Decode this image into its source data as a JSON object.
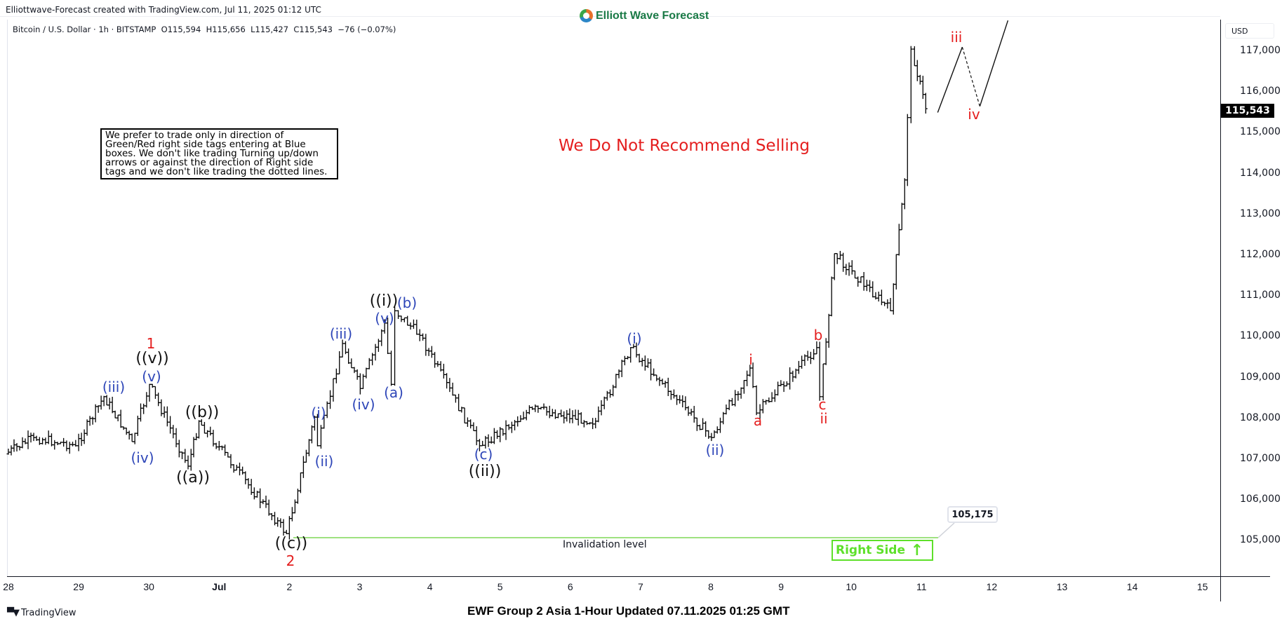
{
  "header": {
    "credit": "Elliottwave-Forecast created with TradingView.com, Jul 11, 2025 01:12 UTC",
    "brand": "Elliott Wave Forecast",
    "symbol_legend": "Bitcoin / U.S. Dollar · 1h · BITSTAMP  O115,594  H115,656  L115,427  C115,543  −76 (−0.07%)"
  },
  "note_box": "We prefer to trade only in direction of Green/Red right side tags entering at Blue boxes. We don't like trading Turning up/down arrows or against the direction of Right side tags and we don't like trading the dotted lines.",
  "headline": "We Do Not Recommend Selling",
  "price_axis": {
    "currency": "USD",
    "last_price": "115,543",
    "ticks": [
      "117,000",
      "116,000",
      "115,000",
      "114,000",
      "113,000",
      "112,000",
      "111,000",
      "110,000",
      "109,000",
      "108,000",
      "107,000",
      "106,000",
      "105,000"
    ]
  },
  "time_axis": {
    "ticks": [
      "28",
      "29",
      "30",
      "Jul",
      "2",
      "3",
      "4",
      "5",
      "6",
      "7",
      "8",
      "9",
      "10",
      "11",
      "12",
      "13",
      "14",
      "15"
    ]
  },
  "invalidation": {
    "label": "Invalidation level",
    "price": "105,175"
  },
  "right_side_tag": {
    "label": "Right Side",
    "arrow": "↑",
    "color": "#5ee02a"
  },
  "footer": {
    "tv_logo": "TradingView",
    "title": "EWF Group 2 Asia 1-Hour Updated 07.11.2025 01:25 GMT"
  },
  "colors": {
    "wave_blue": "#2e46b8",
    "wave_black": "#111111",
    "wave_red": "#e41e1e",
    "bars": "#000000",
    "invalidation_line": "#7ed957"
  },
  "chart_data": {
    "type": "ohlc-bar",
    "title": "Bitcoin / U.S. Dollar · 1h · BITSTAMP",
    "xlabel": "",
    "ylabel": "USD",
    "ylim": [
      104200,
      117900
    ],
    "x_range": [
      "2025-06-28",
      "2025-07-15"
    ],
    "grid": false,
    "last": {
      "open": 115594,
      "high": 115656,
      "low": 115427,
      "close": 115543,
      "change": -76,
      "change_pct": -0.07
    },
    "price_path": [
      {
        "date": "Jun 28",
        "price": 107100
      },
      {
        "date": "Jun 28.4",
        "price": 107500
      },
      {
        "date": "Jun 29",
        "price": 107300
      },
      {
        "date": "Jun 29.4",
        "price": 108500,
        "label": "(iii)"
      },
      {
        "date": "Jun 29.8",
        "price": 107400,
        "label": "(iv)"
      },
      {
        "date": "Jun 30.05",
        "price": 108800,
        "label": "(v) ((v)) 1"
      },
      {
        "date": "Jun 30.6",
        "price": 106800,
        "label": "((a))"
      },
      {
        "date": "Jun 30.75",
        "price": 107900,
        "label": "((b))"
      },
      {
        "date": "Jul 2",
        "price": 105150,
        "label": "((c)) 2"
      },
      {
        "date": "Jul 2.4",
        "price": 108000,
        "label": "(i)"
      },
      {
        "date": "Jul 2.45",
        "price": 107300,
        "label": "(ii)"
      },
      {
        "date": "Jul 2.8",
        "price": 109800,
        "label": "(iii)"
      },
      {
        "date": "Jul 3.05",
        "price": 108700,
        "label": "(iv)"
      },
      {
        "date": "Jul 3.4",
        "price": 110300,
        "label": "(v) ((i))"
      },
      {
        "date": "Jul 3.5",
        "price": 108800,
        "label": "(a)"
      },
      {
        "date": "Jul 3.55",
        "price": 110600,
        "label": "(b)"
      },
      {
        "date": "Jul 3.9",
        "price": 110000
      },
      {
        "date": "Jul 4.75",
        "price": 107300,
        "label": "(c) ((ii))"
      },
      {
        "date": "Jul 5.5",
        "price": 108200
      },
      {
        "date": "Jul 6.4",
        "price": 107900
      },
      {
        "date": "Jul 6.9",
        "price": 109700,
        "label": "(i)"
      },
      {
        "date": "Jul 8.05",
        "price": 107500,
        "label": "(ii)"
      },
      {
        "date": "Jul 8.6",
        "price": 109200,
        "label": "i"
      },
      {
        "date": "Jul 8.7",
        "price": 108100,
        "label": "a"
      },
      {
        "date": "Jul 9.55",
        "price": 109700,
        "label": "b"
      },
      {
        "date": "Jul 9.6",
        "price": 108500,
        "label": "c ii"
      },
      {
        "date": "Jul 9.8",
        "price": 112000
      },
      {
        "date": "Jul 10.6",
        "price": 110600
      },
      {
        "date": "Jul 10.8",
        "price": 113800
      },
      {
        "date": "Jul 10.9",
        "price": 117000
      },
      {
        "date": "Jul 11.1",
        "price": 115543
      }
    ],
    "projection": [
      {
        "date": "Jul 11.15",
        "price": 115450
      },
      {
        "date": "Jul 11.5",
        "price": 117050,
        "label": "iii"
      },
      {
        "date": "Jul 11.75",
        "price": 115600,
        "label": "iv",
        "style": "dashed"
      },
      {
        "date": "Jul 12.15",
        "price": 117700
      }
    ],
    "annotations": [
      "We Do Not Recommend Selling",
      "Invalidation level 105,175",
      "Right Side ↑"
    ]
  }
}
